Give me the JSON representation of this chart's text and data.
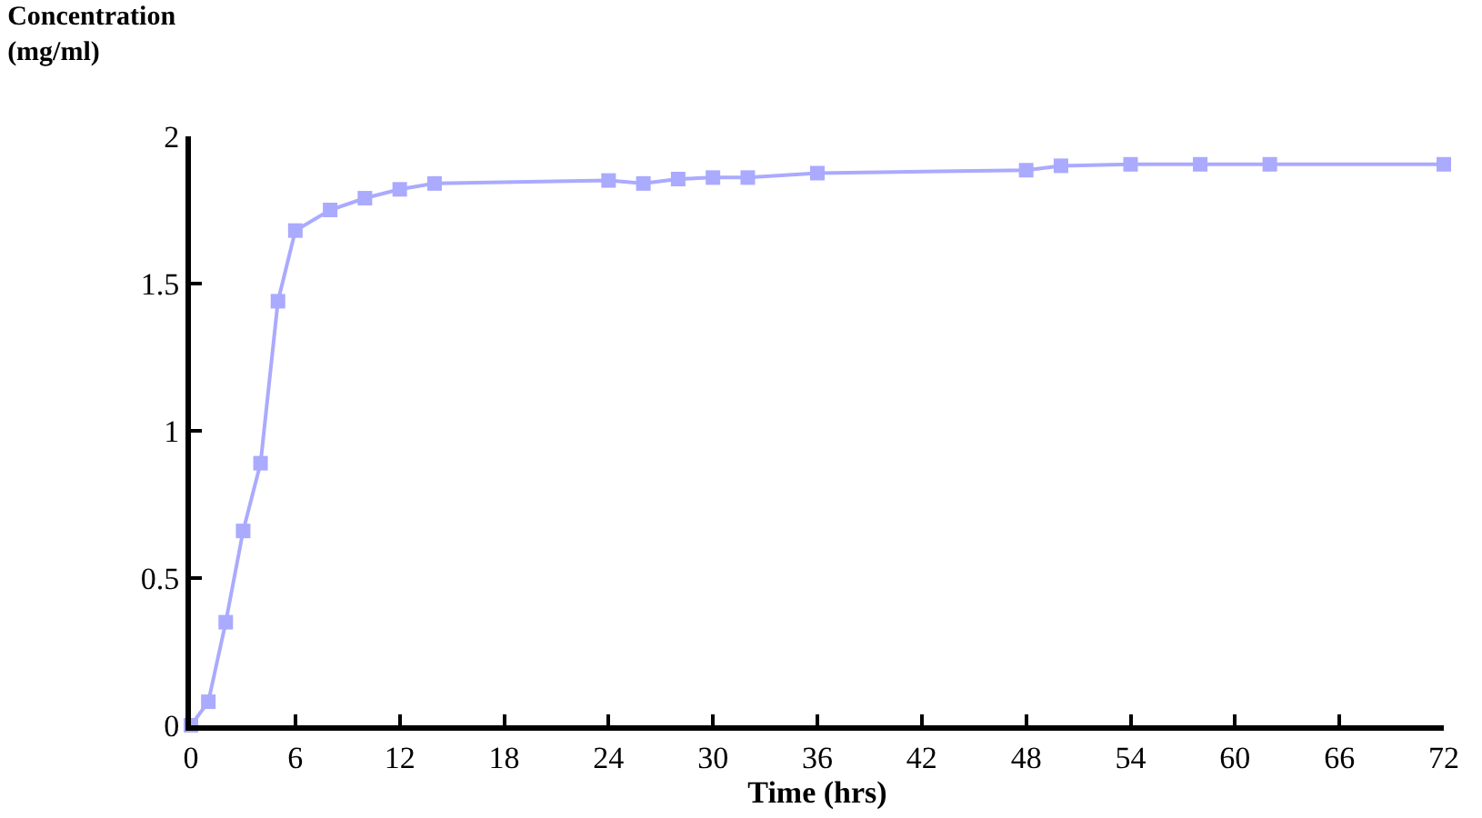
{
  "chart_data": {
    "type": "line",
    "title": "Concentration\n(mg/ml)",
    "xlabel": "Time (hrs)",
    "x": [
      0,
      1,
      2,
      3,
      4,
      5,
      6,
      8,
      10,
      12,
      14,
      24,
      26,
      28,
      30,
      32,
      36,
      48,
      50,
      54,
      58,
      62,
      72
    ],
    "series": [
      {
        "color": "#aaaaff",
        "values": [
          0,
          0.08,
          0.35,
          0.66,
          0.89,
          1.44,
          1.68,
          1.75,
          1.79,
          1.82,
          1.84,
          1.85,
          1.84,
          1.855,
          1.86,
          1.86,
          1.875,
          1.885,
          1.9,
          1.905,
          1.905,
          1.905,
          1.905
        ]
      }
    ],
    "xlim": [
      0,
      72
    ],
    "xticks": [
      0,
      6,
      12,
      18,
      24,
      30,
      36,
      42,
      48,
      54,
      60,
      66,
      72
    ],
    "ylim": [
      0,
      2
    ],
    "yticks": [
      0,
      0.5,
      1,
      1.5,
      2
    ],
    "legend": false,
    "marker": "square",
    "line_style": "solid"
  }
}
